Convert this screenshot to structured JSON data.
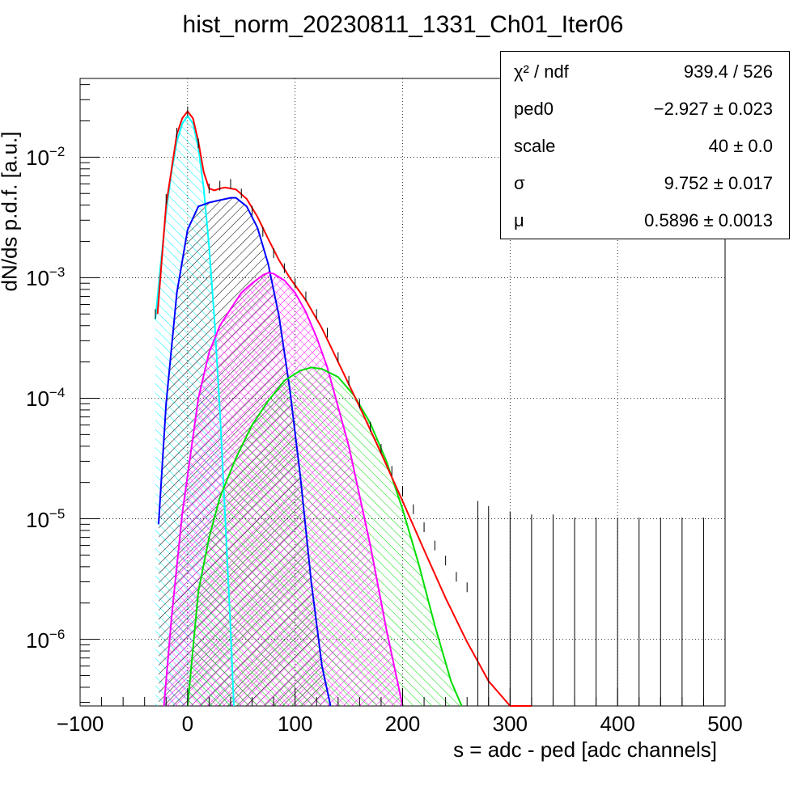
{
  "title": "hist_norm_20230811_1331_Ch01_Iter06",
  "stats": [
    {
      "name": "χ² / ndf",
      "value": "939.4 / 526"
    },
    {
      "name": "ped0",
      "value": "−2.927 ± 0.023"
    },
    {
      "name": "scale",
      "value": "40 ± 0.0"
    },
    {
      "name": "σ",
      "value": "9.752 ± 0.017"
    },
    {
      "name": "μ",
      "value": "0.5896 ± 0.0013"
    }
  ],
  "chart_data": {
    "type": "line",
    "title": "hist_norm_20230811_1331_Ch01_Iter06",
    "xlabel": "s = adc - ped [adc channels]",
    "ylabel": "dN/ds p.d.f. [a.u.]",
    "xlim": [
      -100,
      500
    ],
    "ylim": [
      2.8e-07,
      0.045
    ],
    "yscale": "log",
    "grid": true,
    "legend": "none",
    "x_ticks": [
      "−100",
      "0",
      "100",
      "200",
      "300",
      "400",
      "500"
    ],
    "y_ticks": [
      {
        "base": "10",
        "exp": "−2",
        "value": 0.01
      },
      {
        "base": "10",
        "exp": "−3",
        "value": 0.001
      },
      {
        "base": "10",
        "exp": "−4",
        "value": 0.0001
      },
      {
        "base": "10",
        "exp": "−5",
        "value": 1e-05
      },
      {
        "base": "10",
        "exp": "−6",
        "value": 1e-06
      }
    ],
    "series": [
      {
        "color": "#00ffff",
        "fill": true,
        "x": [
          -30,
          -25,
          -20,
          -15,
          -10,
          -5,
          0,
          5,
          10,
          15,
          20,
          25,
          30,
          35,
          40,
          43
        ],
        "y": [
          0.00045,
          0.0013,
          0.0035,
          0.0075,
          0.0135,
          0.019,
          0.022,
          0.019,
          0.012,
          0.0055,
          0.0018,
          0.00045,
          8e-05,
          1e-05,
          1.2e-06,
          2.8e-07
        ]
      },
      {
        "color": "#0000ff",
        "fill": true,
        "x": [
          -27,
          -20,
          -10,
          0,
          10,
          20,
          30,
          40,
          45,
          55,
          65,
          75,
          85,
          95,
          105,
          115,
          125,
          133
        ],
        "y": [
          9e-06,
          9e-05,
          0.00075,
          0.0025,
          0.0039,
          0.0042,
          0.0044,
          0.0046,
          0.0046,
          0.0039,
          0.0026,
          0.0013,
          0.00048,
          0.00012,
          2.2e-05,
          3e-06,
          6e-07,
          2.8e-07
        ]
      },
      {
        "color": "#ff00ff",
        "fill": true,
        "x": [
          -22,
          -15,
          -5,
          10,
          20,
          30,
          40,
          50,
          60,
          70,
          75,
          80,
          90,
          100,
          110,
          120,
          130,
          150,
          170,
          185,
          200
        ],
        "y": [
          2.8e-07,
          1.5e-06,
          1.1e-05,
          0.0001,
          0.00024,
          0.0004,
          0.00055,
          0.00075,
          0.0009,
          0.00105,
          0.0011,
          0.00108,
          0.00095,
          0.00075,
          0.00052,
          0.00032,
          0.00018,
          4e-05,
          6e-06,
          1.2e-06,
          2.8e-07
        ]
      },
      {
        "color": "#00dd00",
        "fill": true,
        "x": [
          0,
          10,
          20,
          30,
          45,
          60,
          75,
          90,
          105,
          115,
          125,
          140,
          155,
          170,
          185,
          200,
          215,
          230,
          245,
          255
        ],
        "y": [
          2.8e-07,
          2.5e-06,
          7e-06,
          1.5e-05,
          3.2e-05,
          6e-05,
          9.5e-05,
          0.00014,
          0.00017,
          0.00018,
          0.000175,
          0.00015,
          0.000105,
          6.2e-05,
          3e-05,
          1.2e-05,
          4.2e-06,
          1.3e-06,
          4.5e-07,
          2.8e-07
        ]
      },
      {
        "color": "#ff0000",
        "fill": false,
        "x": [
          -28,
          -20,
          -10,
          -5,
          0,
          5,
          10,
          15,
          20,
          25,
          30,
          35,
          45,
          55,
          65,
          75,
          85,
          95,
          110,
          125,
          140,
          160,
          180,
          200,
          220,
          240,
          260,
          280,
          300,
          310,
          320
        ],
        "y": [
          0.0005,
          0.004,
          0.0155,
          0.021,
          0.024,
          0.021,
          0.0135,
          0.0075,
          0.0055,
          0.0053,
          0.0055,
          0.0056,
          0.0054,
          0.0045,
          0.0032,
          0.0021,
          0.0014,
          0.001,
          0.00065,
          0.00038,
          0.0002,
          8.5e-05,
          3.5e-05,
          1.4e-05,
          5.5e-06,
          2.2e-06,
          9.5e-07,
          4.5e-07,
          2.8e-07,
          2.2e-07,
          1.8e-07
        ]
      },
      {
        "color": "#000000",
        "fill": false,
        "style": "histogram",
        "x": [
          -30,
          -20,
          -10,
          0,
          10,
          20,
          30,
          40,
          50,
          60,
          70,
          80,
          90,
          100,
          110,
          120,
          130,
          140,
          150,
          160,
          170,
          180,
          190,
          200,
          210,
          220,
          230,
          240,
          250,
          260,
          270,
          280,
          300,
          320,
          340,
          360,
          380,
          400,
          420,
          440,
          460,
          480,
          500
        ],
        "y": [
          0.0005,
          0.0045,
          0.016,
          0.024,
          0.013,
          0.0055,
          0.0058,
          0.006,
          0.005,
          0.0036,
          0.0024,
          0.0016,
          0.0012,
          0.0009,
          0.0007,
          0.0005,
          0.00035,
          0.00022,
          0.00014,
          9e-05,
          5.8e-05,
          3.8e-05,
          2.5e-05,
          1.7e-05,
          1.2e-05,
          8.5e-06,
          6e-06,
          4.5e-06,
          3.3e-06,
          2.7e-06,
          2.2e-06,
          2e-06,
          1.8e-06,
          1.7e-06,
          1.7e-06,
          1.6e-06,
          1.6e-06,
          1.6e-06,
          1.6e-06,
          1.6e-06,
          1.6e-06,
          1.6e-06,
          1.6e-06
        ]
      }
    ]
  }
}
